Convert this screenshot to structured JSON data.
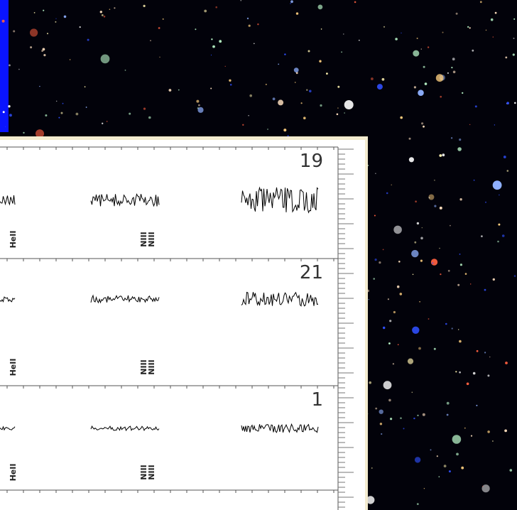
{
  "panels": [
    {
      "label": "19",
      "lines": [
        "HeII",
        "NIII",
        "NIII"
      ]
    },
    {
      "label": "21",
      "lines": [
        "HeII",
        "NIII",
        "NIII"
      ]
    },
    {
      "label": "1",
      "lines": [
        "HeII",
        "NIII",
        "NIII"
      ]
    }
  ]
}
